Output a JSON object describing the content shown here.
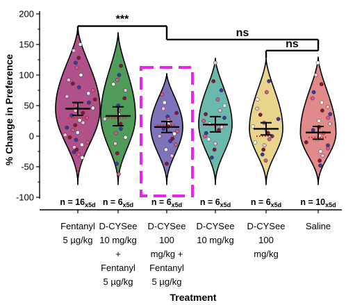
{
  "chart_data": {
    "type": "violin",
    "ylabel": "% Change in Preference",
    "xlabel": "Treatment",
    "ylim": [
      -100,
      200
    ],
    "yticks": [
      -100,
      -50,
      0,
      50,
      100,
      150,
      200
    ],
    "highlight_group": 2,
    "highlight_color": "#ee22ee",
    "mean_line_color": "#e8101a",
    "groups": [
      {
        "label_lines": [
          "Fentanyl",
          "5 µg/kg"
        ],
        "n_text": "n = 16",
        "n_sub": "x5d",
        "fill": "#b0518a",
        "min": -80,
        "max": 178,
        "mean": 45,
        "sem_low": 34,
        "sem_high": 55,
        "mean_dot": 30,
        "violin_width": 1.0,
        "points": [
          150,
          140,
          128,
          120,
          112,
          100,
          92,
          86,
          80,
          75,
          70,
          65,
          60,
          55,
          50,
          46,
          42,
          38,
          34,
          30,
          26,
          22,
          18,
          14,
          10,
          6,
          2,
          -2,
          -6,
          -10,
          -14,
          -18,
          -22,
          -26,
          -30,
          -35
        ]
      },
      {
        "label_lines": [
          "D-CYSee",
          "10 mg/kg",
          "+",
          "Fentanyl",
          "5 µg/kg"
        ],
        "n_text": "n = 6",
        "n_sub": "x5d",
        "fill": "#4f9c5a",
        "min": -80,
        "max": 170,
        "mean": 33,
        "sem_low": 17,
        "sem_high": 48,
        "mean_dot": 30,
        "violin_width": 0.78,
        "points": [
          115,
          100,
          92,
          85,
          75,
          62,
          50,
          42,
          35,
          28,
          20,
          12,
          5,
          -2,
          -12,
          -28,
          -45,
          -62
        ]
      },
      {
        "label_lines": [
          "D-CYSee",
          "100",
          "mg/kg +",
          "Fentanyl",
          "5 µg/kg"
        ],
        "n_text": "n = 6",
        "n_sub": "x5d",
        "fill": "#7e72b8",
        "min": -80,
        "max": 103,
        "mean": 15,
        "sem_low": 6,
        "sem_high": 24,
        "mean_dot": 18,
        "violin_width": 0.72,
        "points": [
          68,
          55,
          45,
          38,
          32,
          28,
          24,
          20,
          16,
          12,
          8,
          4,
          0,
          -4,
          -8,
          -14,
          -22,
          -32,
          -45
        ]
      },
      {
        "label_lines": [
          "D-CYSee",
          "10 mg/kg"
        ],
        "n_text": "n = 6",
        "n_sub": "x5d",
        "fill": "#6bb8ac",
        "min": -80,
        "max": 128,
        "mean": 19,
        "sem_low": 7,
        "sem_high": 32,
        "mean_dot": 18,
        "violin_width": 0.75,
        "points": [
          120,
          90,
          75,
          60,
          50,
          42,
          36,
          30,
          25,
          20,
          15,
          10,
          5,
          0,
          -5,
          -12,
          -22,
          -35
        ]
      },
      {
        "label_lines": [
          "D-CYSee",
          "100",
          "mg/kg"
        ],
        "n_text": "n = 6",
        "n_sub": "x5d",
        "fill": "#e8d48a",
        "min": -80,
        "max": 128,
        "mean": 12,
        "sem_low": 2,
        "sem_high": 22,
        "mean_dot": 0,
        "violin_width": 0.75,
        "points": [
          90,
          72,
          60,
          45,
          35,
          28,
          22,
          16,
          10,
          5,
          0,
          -5,
          -10,
          -15,
          -22,
          -30,
          -40
        ]
      },
      {
        "label_lines": [
          "Saline"
        ],
        "n_text": "n = 10",
        "n_sub": "x5d",
        "fill": "#e08a8a",
        "min": -80,
        "max": 130,
        "mean": 6,
        "sem_low": -5,
        "sem_high": 16,
        "mean_dot": -2,
        "violin_width": 0.8,
        "points": [
          120,
          100,
          85,
          72,
          62,
          55,
          48,
          42,
          36,
          30,
          25,
          20,
          15,
          10,
          5,
          0,
          -5,
          -10,
          -15,
          -20,
          -25,
          -32,
          -40,
          -48
        ]
      }
    ],
    "brackets": [
      {
        "from": 0,
        "to": 2,
        "y": 180,
        "drop_left": 165,
        "drop_right": 160,
        "label": "***"
      },
      {
        "from": 2,
        "to": 5,
        "y": 158,
        "drop_left": 160,
        "drop_right": 143,
        "label": "ns"
      },
      {
        "from": 4,
        "to": 5,
        "y": 140,
        "drop_left": 128,
        "drop_right": 143,
        "label": "ns"
      }
    ]
  }
}
